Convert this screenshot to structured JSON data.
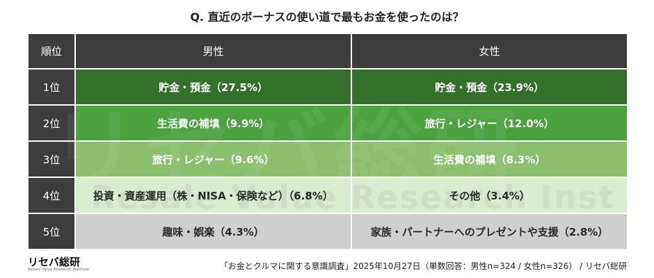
{
  "title": "Q. 直近のボーナスの使い道で最もお金を使ったのは？",
  "table": {
    "headers": {
      "rank": "順位",
      "male": "男性",
      "female": "女性"
    },
    "rows": [
      {
        "rank": "1位",
        "male": "貯金・預金（27.5%）",
        "female": "貯金・預金（23.9%）"
      },
      {
        "rank": "2位",
        "male": "生活費の補填（9.9%）",
        "female": "旅行・レジャー（12.0%）"
      },
      {
        "rank": "3位",
        "male": "旅行・レジャー（9.6%）",
        "female": "生活費の補填（8.3%）"
      },
      {
        "rank": "4位",
        "male": "投資・資産運用（株・NISA・保険など）（6.8%）",
        "female": "その他（3.4%）"
      },
      {
        "rank": "5位",
        "male": "趣味・娯楽（4.3%）",
        "female": "家族・パートナーへのプレゼントや支援（2.8%）"
      }
    ]
  },
  "watermark": {
    "main": "リセバ総研",
    "sub": "Resale Value Research Institute"
  },
  "logo": {
    "text": "リセバ総研",
    "sub": "Resale Value Research Institute"
  },
  "footer": "「お金とクルマに関する意識調査」2025年10月27日（単数回答：男性n=324 / 女性n=326） / リセバ総研",
  "colors": {
    "header_bg": "#3d3d3d",
    "rank1": "#356f2c",
    "rank2": "#4ba33e",
    "rank3": "#8cbf6b",
    "rank4": "#d8ecd0",
    "rank5": "#cfcfcf"
  }
}
